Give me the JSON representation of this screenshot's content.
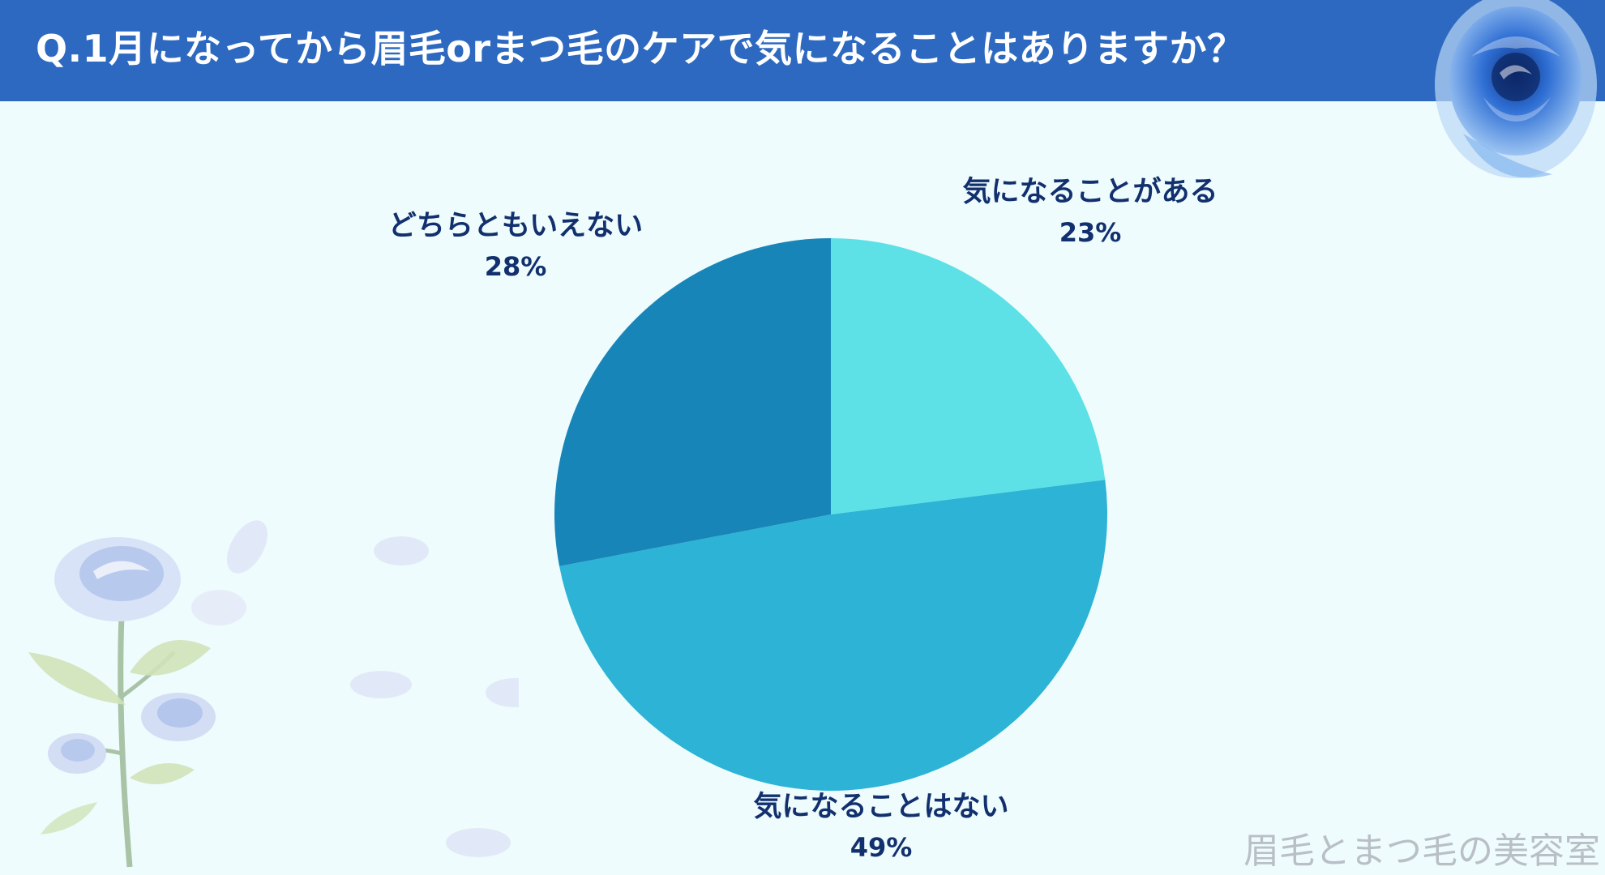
{
  "header": {
    "title": "Q.1月になってから眉毛orまつ毛のケアで気になることはありますか？",
    "background": "#2d69c0"
  },
  "watermark": "眉毛とまつ毛の美容室",
  "chart_data": {
    "type": "pie",
    "title": "",
    "slices": [
      {
        "label": "気になることがある",
        "value": 23,
        "display": "23%",
        "color": "#5de1e6"
      },
      {
        "label": "気になることはない",
        "value": 49,
        "display": "49%",
        "color": "#2db3d5"
      },
      {
        "label": "どちらともいえない",
        "value": 28,
        "display": "28%",
        "color": "#1885b8"
      }
    ],
    "start_angle": "12 o'clock",
    "direction": "clockwise",
    "label_color": "#12306e"
  },
  "decorations": [
    "blue-rose-top-right",
    "pale-blue-roses-bottom-left",
    "falling-petals"
  ]
}
